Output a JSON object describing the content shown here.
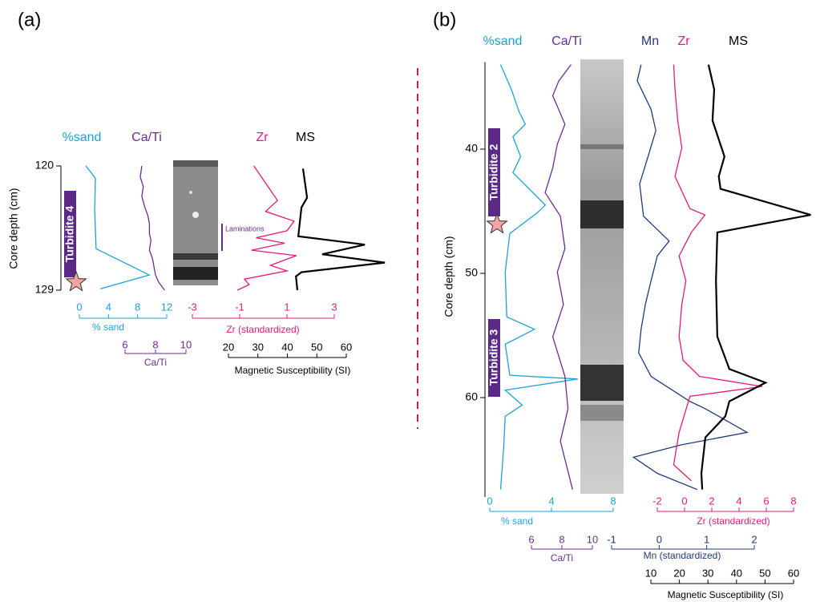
{
  "chart_data": [
    {
      "type": "line",
      "title": "(a)",
      "ylabel": "Core depth (cm)",
      "ylim": [
        120,
        129
      ],
      "yticks": [
        120,
        129
      ],
      "axes": [
        {
          "label": "% sand",
          "xlim": [
            0,
            12
          ],
          "xticks": [
            0,
            4,
            8,
            12
          ],
          "color": "#1ba1d8"
        },
        {
          "label": "Ca/Ti",
          "xlim": [
            6,
            10
          ],
          "xticks": [
            6,
            8,
            10
          ],
          "color": "#6a2c91"
        },
        {
          "label": "Zr (standardized)",
          "xlim": [
            -3,
            3
          ],
          "xticks": [
            -3,
            -1,
            1,
            3
          ],
          "color": "#e5197f"
        },
        {
          "label": "Magnetic Susceptibility (SI)",
          "xlim": [
            20,
            60
          ],
          "xticks": [
            20,
            30,
            40,
            50,
            60
          ],
          "color": "#000000"
        }
      ],
      "series": [
        {
          "name": "%sand",
          "color": "#1ba1d8",
          "axis": 0,
          "depth": [
            120.0,
            120.9,
            123.2,
            126.0,
            127.9,
            128.9
          ],
          "values": [
            0.9,
            2.2,
            2.1,
            2.3,
            9.6,
            2.9
          ]
        },
        {
          "name": "Ca/Ti",
          "color": "#6a2c91",
          "axis": 1,
          "depth": [
            120.0,
            120.8,
            121.5,
            122.2,
            123.0,
            123.6,
            124.2,
            124.9,
            125.4,
            126.1,
            126.7,
            127.3,
            127.9,
            128.4,
            129.0
          ],
          "values": [
            7.1,
            7.0,
            7.2,
            7.1,
            7.3,
            7.5,
            7.6,
            7.6,
            7.7,
            7.6,
            7.8,
            7.9,
            8.0,
            8.2,
            8.6
          ]
        },
        {
          "name": "Zr",
          "color": "#e5197f",
          "axis": 2,
          "depth": [
            120.0,
            121.0,
            122.5,
            123.3,
            124.0,
            124.7,
            125.2,
            125.6,
            126.1,
            126.5,
            127.2,
            127.6,
            128.2,
            128.6,
            129.0
          ],
          "values": [
            -0.4,
            0.0,
            0.6,
            0.1,
            1.3,
            1.0,
            -0.3,
            0.9,
            -0.5,
            1.4,
            0.3,
            1.0,
            -0.8,
            -0.6,
            -1.1
          ]
        },
        {
          "name": "MS",
          "color": "#000000",
          "axis": 3,
          "depth": [
            120.2,
            122.3,
            123.0,
            125.1,
            125.7,
            126.4,
            127.0,
            127.7,
            128.0,
            129.0
          ],
          "values": [
            45.3,
            46.7,
            44.8,
            43.7,
            66.3,
            51.8,
            73.1,
            44.8,
            42.9,
            43.4
          ]
        }
      ],
      "annotations": [
        "Turbidite 4",
        "Laminations"
      ]
    },
    {
      "type": "line",
      "title": "(b)",
      "ylabel": "Core depth (cm)",
      "ylim": [
        33,
        68
      ],
      "yticks": [
        40,
        50,
        60
      ],
      "axes": [
        {
          "label": "% sand",
          "xlim": [
            0,
            8
          ],
          "xticks": [
            0,
            4,
            8
          ],
          "color": "#1ba1d8"
        },
        {
          "label": "Ca/Ti",
          "xlim": [
            6,
            10
          ],
          "xticks": [
            6,
            8,
            10
          ],
          "color": "#6a2c91"
        },
        {
          "label": "Zr (standardized)",
          "xlim": [
            -2,
            8
          ],
          "xticks": [
            -2,
            0,
            2,
            4,
            6,
            8
          ],
          "color": "#e5197f"
        },
        {
          "label": "Mn (standardized)",
          "xlim": [
            -1,
            2
          ],
          "xticks": [
            -1,
            0,
            1,
            2
          ],
          "color": "#1f3a7a"
        },
        {
          "label": "Magnetic Susceptibility (SI)",
          "xlim": [
            10,
            60
          ],
          "xticks": [
            10,
            20,
            30,
            40,
            50,
            60
          ],
          "color": "#000000"
        }
      ],
      "series": [
        {
          "name": "%sand",
          "color": "#1ba1d8",
          "axis": 0,
          "depth": [
            33.2,
            35.2,
            37.0,
            38.0,
            39.0,
            40.6,
            41.9,
            44.5,
            45.1,
            46.8,
            49.9,
            53.5,
            54.5,
            55.7,
            58.2,
            58.5,
            59.4,
            60.6,
            61.5,
            64.1,
            67.4
          ],
          "values": [
            0.7,
            1.4,
            1.9,
            2.3,
            1.5,
            2.0,
            1.5,
            3.6,
            3.1,
            1.3,
            1.0,
            1.1,
            2.9,
            1.0,
            1.3,
            5.7,
            1.0,
            2.1,
            1.0,
            0.9,
            0.7
          ]
        },
        {
          "name": "Ca/Ti",
          "color": "#6a2c91",
          "axis": 1,
          "depth": [
            33.2,
            34.5,
            35.7,
            38.0,
            39.6,
            41.5,
            43.5,
            45.4,
            48.0,
            49.9,
            52.5,
            55.1,
            58.3,
            60.9,
            63.5,
            67.4
          ],
          "values": [
            8.6,
            7.8,
            7.4,
            8.2,
            7.7,
            7.4,
            6.9,
            7.9,
            8.2,
            7.7,
            8.1,
            7.4,
            8.2,
            8.4,
            7.9,
            8.7
          ]
        },
        {
          "name": "Mn",
          "color": "#1f3a7a",
          "axis": 3,
          "depth": [
            33.2,
            34.5,
            36.8,
            38.5,
            40.3,
            42.8,
            45.4,
            47.4,
            48.6,
            50.6,
            52.5,
            54.5,
            56.4,
            58.3,
            60.3,
            60.9,
            62.8,
            63.8,
            64.8,
            66.1,
            67.4
          ],
          "values": [
            -0.38,
            -0.46,
            -0.17,
            -0.07,
            -0.21,
            -0.41,
            -0.33,
            0.21,
            -0.04,
            -0.17,
            -0.29,
            -0.38,
            -0.43,
            -0.17,
            0.64,
            0.97,
            1.85,
            0.47,
            -0.54,
            -0.04,
            0.8
          ]
        },
        {
          "name": "Zr",
          "color": "#e5197f",
          "axis": 2,
          "depth": [
            33.2,
            35.2,
            37.7,
            39.9,
            42.2,
            44.8,
            45.3,
            46.7,
            48.6,
            50.6,
            52.5,
            55.1,
            57.0,
            58.3,
            59.1,
            59.9,
            62.8,
            65.4,
            66.7
          ],
          "values": [
            -0.8,
            -0.7,
            -0.5,
            -0.2,
            -0.7,
            0.4,
            1.5,
            0.5,
            -0.4,
            0.1,
            -0.2,
            -0.4,
            -0.1,
            1.1,
            5.7,
            0.4,
            -0.4,
            -0.8,
            0.5
          ]
        },
        {
          "name": "MS",
          "color": "#000000",
          "axis": 4,
          "depth": [
            33.2,
            35.2,
            37.7,
            40.6,
            42.2,
            43.2,
            45.3,
            46.7,
            50.6,
            55.1,
            57.7,
            58.8,
            60.3,
            61.5,
            63.2,
            66.1,
            67.4
          ],
          "values": [
            30.2,
            32.2,
            31.6,
            35.8,
            33.8,
            34.4,
            66,
            33.3,
            32.8,
            33.3,
            37.5,
            50.2,
            37.5,
            36.1,
            29.1,
            27.7,
            28.0
          ]
        }
      ],
      "annotations": [
        "Turbidite 2",
        "Turbidite 3"
      ]
    }
  ]
}
